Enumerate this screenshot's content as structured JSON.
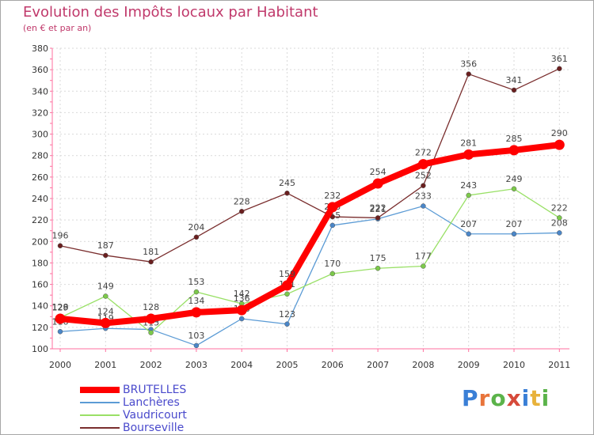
{
  "header": {
    "title": "Evolution des Impôts locaux par Habitant",
    "subtitle": "(en € et par an)"
  },
  "logo": {
    "text": "Proxiti",
    "letter_colors": [
      "#3a7fd6",
      "#e8743b",
      "#5bb34a",
      "#d64a3a",
      "#3a7fd6",
      "#e8b23b",
      "#5bb34a"
    ]
  },
  "chart_data": {
    "type": "line",
    "title": "Evolution des Impôts locaux par Habitant",
    "subtitle": "(en € et par an)",
    "xlabel": "",
    "ylabel": "",
    "x": [
      "2000",
      "2001",
      "2002",
      "2003",
      "2004",
      "2005",
      "2006",
      "2007",
      "2008",
      "2009",
      "2010",
      "2011"
    ],
    "ylim": [
      100,
      380
    ],
    "yticks": [
      100,
      120,
      140,
      160,
      180,
      200,
      220,
      240,
      260,
      280,
      300,
      320,
      340,
      360,
      380
    ],
    "grid": true,
    "legend_position": "bottom-left",
    "series": [
      {
        "name": "Lanchères",
        "color": "#5b9bd5",
        "marker": "#4a86c8",
        "values": [
          116,
          119,
          118,
          103,
          128,
          123,
          215,
          221,
          233,
          207,
          207,
          208
        ],
        "labels": [
          "116",
          "119",
          "118",
          "103",
          "128",
          "123",
          "215",
          "221",
          "233",
          "207",
          "207",
          "208"
        ]
      },
      {
        "name": "Vaudricourt",
        "color": "#99e066",
        "marker": "#7cc94a",
        "values": [
          129,
          149,
          115,
          153,
          142,
          151,
          170,
          175,
          177,
          243,
          249,
          222
        ],
        "labels": [
          "129",
          "149",
          "115",
          "153",
          "142",
          "151",
          "170",
          "175",
          "177",
          "243",
          "249",
          "222"
        ]
      },
      {
        "name": "Bourseville",
        "color": "#7a2e2e",
        "marker": "#6a1f1f",
        "values": [
          196,
          187,
          181,
          204,
          228,
          245,
          223,
          222,
          252,
          356,
          341,
          361
        ],
        "labels": [
          "196",
          "187",
          "181",
          "204",
          "228",
          "245",
          "223",
          "222",
          "252",
          "356",
          "341",
          "361"
        ]
      },
      {
        "name": "BRUTELLES",
        "color": "#ff0000",
        "marker": "#ff0000",
        "values": [
          128,
          124,
          128,
          134,
          136,
          159,
          232,
          254,
          272,
          281,
          285,
          290
        ],
        "labels": [
          "128",
          "124",
          "128",
          "134",
          "136",
          "159",
          "232",
          "254",
          "272",
          "281",
          "285",
          "290"
        ]
      }
    ]
  },
  "legend": [
    {
      "name": "BRUTELLES",
      "color": "#ff0000",
      "thick": true
    },
    {
      "name": "Lanchères",
      "color": "#5b9bd5",
      "thick": false
    },
    {
      "name": "Vaudricourt",
      "color": "#99e066",
      "thick": false
    },
    {
      "name": "Bourseville",
      "color": "#7a2e2e",
      "thick": false
    }
  ]
}
